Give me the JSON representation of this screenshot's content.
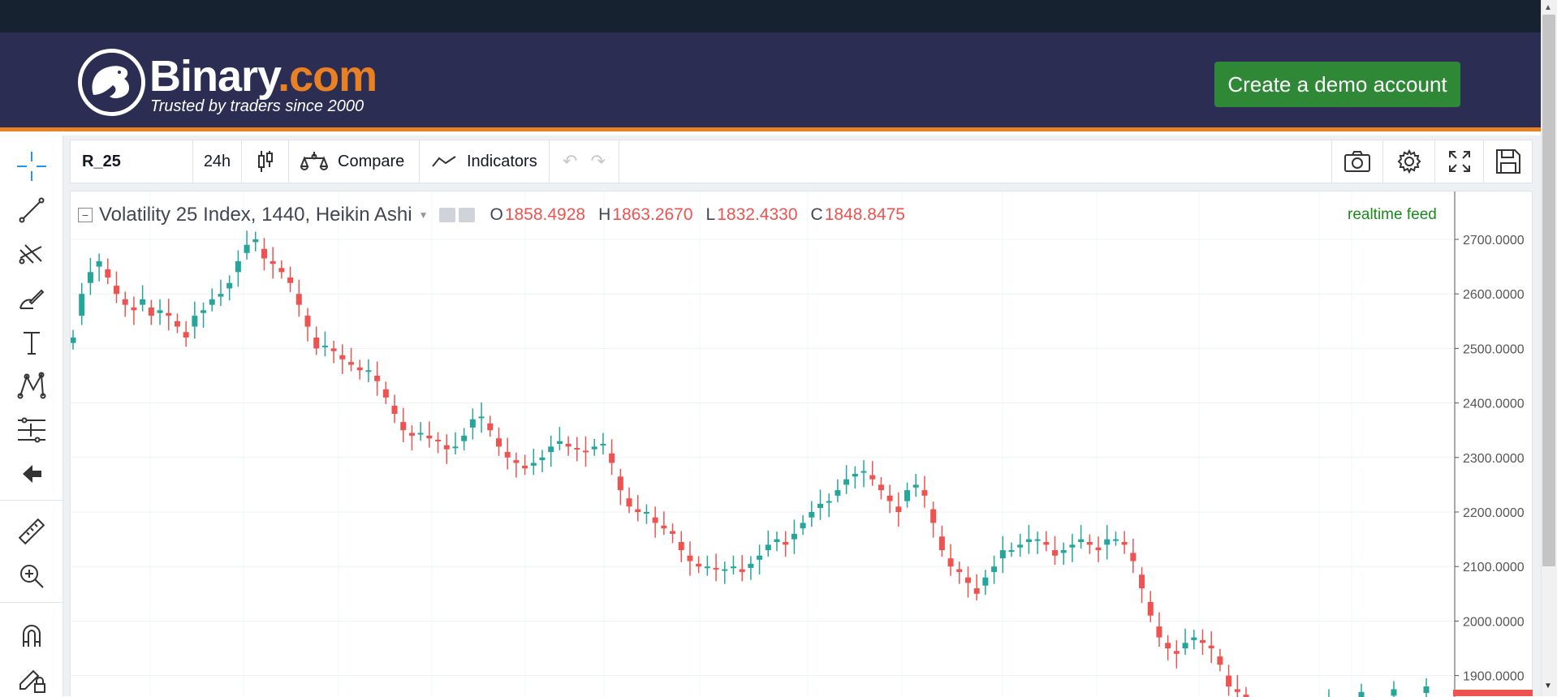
{
  "header": {
    "brand_name": "Binary",
    "brand_suffix": ".com",
    "tagline": "Trusted by traders since 2000",
    "demo_button_label": "Create a demo account"
  },
  "toolbar": {
    "symbol": "R_25",
    "interval": "24h",
    "chart_type_icon": "candles-icon",
    "compare_label": "Compare",
    "indicators_label": "Indicators",
    "right_icons": [
      "camera-icon",
      "gear-icon",
      "fullscreen-icon",
      "save-icon"
    ]
  },
  "left_tools": [
    "crosshair-icon",
    "trend-line-icon",
    "pitchfork-icon",
    "brush-icon",
    "text-icon",
    "pattern-icon",
    "measure-levels-icon",
    "back-arrow-icon",
    "ruler-icon",
    "zoom-in-icon",
    "magnet-icon",
    "lock-drawings-icon"
  ],
  "chart": {
    "legend_title": "Volatility 25 Index, 1440, Heikin Ashi",
    "o_label": "O",
    "o_value": "1858.4928",
    "h_label": "H",
    "h_value": "1863.2670",
    "l_label": "L",
    "l_value": "1832.4330",
    "c_label": "C",
    "c_value": "1848.8475",
    "feed_status": "realtime feed",
    "up_color": "#26a69a",
    "down_color": "#ef5350"
  },
  "chart_data": {
    "type": "candlestick",
    "title": "Volatility 25 Index, 1440, Heikin Ashi",
    "ylim": [
      1880,
      2745
    ],
    "y_ticks": [
      "2700.0000",
      "2600.0000",
      "2500.0000",
      "2400.0000",
      "2300.0000",
      "2200.0000",
      "2100.0000",
      "2000.0000",
      "1900.0000"
    ],
    "close_series": [
      2520,
      2600,
      2640,
      2660,
      2630,
      2600,
      2580,
      2570,
      2590,
      2560,
      2570,
      2560,
      2540,
      2520,
      2560,
      2570,
      2590,
      2600,
      2620,
      2660,
      2690,
      2700,
      2665,
      2655,
      2640,
      2620,
      2580,
      2540,
      2500,
      2505,
      2495,
      2480,
      2470,
      2460,
      2460,
      2440,
      2410,
      2380,
      2350,
      2340,
      2345,
      2335,
      2330,
      2315,
      2320,
      2340,
      2370,
      2375,
      2350,
      2320,
      2300,
      2290,
      2280,
      2290,
      2300,
      2320,
      2330,
      2320,
      2315,
      2310,
      2320,
      2325,
      2290,
      2240,
      2210,
      2200,
      2200,
      2180,
      2170,
      2160,
      2130,
      2110,
      2100,
      2100,
      2095,
      2095,
      2100,
      2090,
      2105,
      2120,
      2140,
      2150,
      2140,
      2160,
      2180,
      2200,
      2215,
      2220,
      2240,
      2260,
      2270,
      2275,
      2260,
      2240,
      2220,
      2200,
      2240,
      2250,
      2230,
      2180,
      2130,
      2100,
      2090,
      2070,
      2050,
      2080,
      2100,
      2130,
      2130,
      2140,
      2150,
      2150,
      2140,
      2120,
      2130,
      2140,
      2150,
      2140,
      2130,
      2150,
      2150,
      2140,
      2110,
      2060,
      2010,
      1970,
      1950,
      1940,
      1960,
      1970,
      1960,
      1950,
      1920,
      1880,
      1870,
      1860
    ],
    "visible_tail_y": [
      1860,
      1870,
      1875,
      1880
    ]
  }
}
